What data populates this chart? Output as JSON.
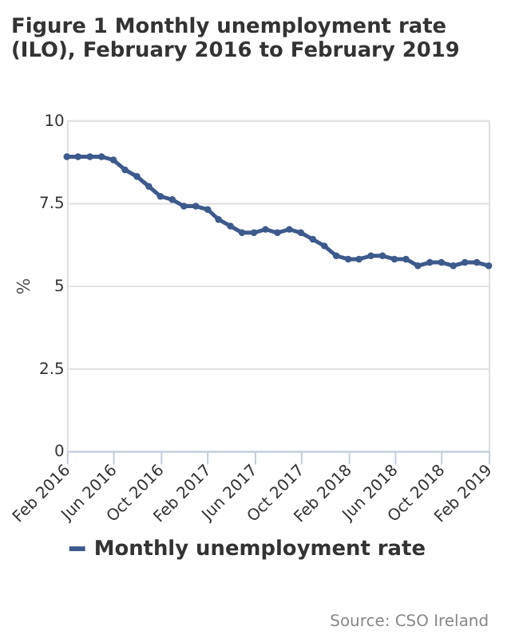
{
  "chart_data": {
    "type": "line",
    "title": [
      "Figure 1 Monthly unemployment rate",
      "(ILO), February 2016 to February 2019"
    ],
    "ylabel": "%",
    "x": [
      "2016-02",
      "2016-03",
      "2016-04",
      "2016-05",
      "2016-06",
      "2016-07",
      "2016-08",
      "2016-09",
      "2016-10",
      "2016-11",
      "2016-12",
      "2017-01",
      "2017-02",
      "2017-03",
      "2017-04",
      "2017-05",
      "2017-06",
      "2017-07",
      "2017-08",
      "2017-09",
      "2017-10",
      "2017-11",
      "2017-12",
      "2018-01",
      "2018-02",
      "2018-03",
      "2018-04",
      "2018-05",
      "2018-06",
      "2018-07",
      "2018-08",
      "2018-09",
      "2018-10",
      "2018-11",
      "2018-12",
      "2019-01",
      "2019-02"
    ],
    "series": [
      {
        "name": "Monthly unemployment rate",
        "color": "#3d5a8c",
        "values": [
          8.9,
          8.9,
          8.9,
          8.9,
          8.8,
          8.5,
          8.3,
          8.0,
          7.7,
          7.6,
          7.4,
          7.4,
          7.3,
          7.0,
          6.8,
          6.6,
          6.6,
          6.7,
          6.6,
          6.7,
          6.6,
          6.4,
          6.2,
          5.9,
          5.8,
          5.8,
          5.9,
          5.9,
          5.8,
          5.8,
          5.6,
          5.7,
          5.7,
          5.6,
          5.7,
          5.7,
          5.6
        ]
      }
    ],
    "xlim": [
      "2016-02",
      "2019-02"
    ],
    "xticks": [
      {
        "value": "2016-02",
        "label": "Feb 2016"
      },
      {
        "value": "2016-06",
        "label": "Jun 2016"
      },
      {
        "value": "2016-10",
        "label": "Oct 2016"
      },
      {
        "value": "2017-02",
        "label": "Feb 2017"
      },
      {
        "value": "2017-06",
        "label": "Jun 2017"
      },
      {
        "value": "2017-10",
        "label": "Oct 2017"
      },
      {
        "value": "2018-02",
        "label": "Feb 2018"
      },
      {
        "value": "2018-06",
        "label": "Jun 2018"
      },
      {
        "value": "2018-10",
        "label": "Oct 2018"
      },
      {
        "value": "2019-02",
        "label": "Feb 2019"
      }
    ],
    "ylim": [
      0,
      10
    ],
    "yticks": [
      0,
      2.5,
      5,
      7.5,
      10
    ],
    "grid": "y",
    "legend": "bottom",
    "marker": "circle",
    "line_style": "solid",
    "annotations": [
      "Source: CSO Ireland"
    ]
  }
}
